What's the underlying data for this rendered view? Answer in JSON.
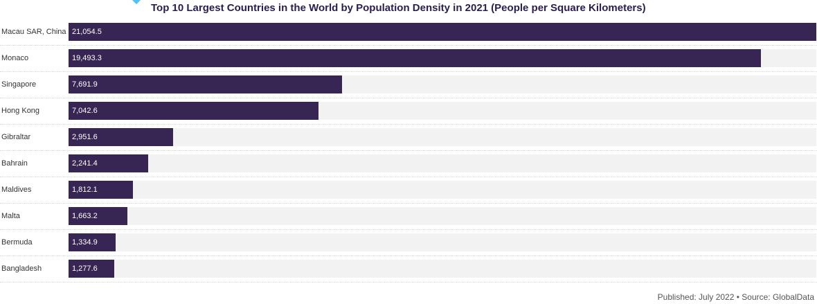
{
  "chart_data": {
    "type": "bar",
    "orientation": "horizontal",
    "title": "Top 10 Largest Countries in the World by Population Density in 2021 (People per Square Kilometers)",
    "categories": [
      "Macau SAR, China",
      "Monaco",
      "Singapore",
      "Hong Kong",
      "Gibraltar",
      "Bahrain",
      "Maldives",
      "Malta",
      "Bermuda",
      "Bangladesh"
    ],
    "values": [
      21054.5,
      19493.3,
      7691.9,
      7042.6,
      2951.6,
      2241.4,
      1812.1,
      1663.2,
      1334.9,
      1277.6
    ],
    "value_labels": [
      "21,054.5",
      "19,493.3",
      "7,691.9",
      "7,042.6",
      "2,951.6",
      "2,241.4",
      "1,812.1",
      "1,663.2",
      "1,334.9",
      "1,277.6"
    ],
    "xlim": [
      0,
      21054.5
    ],
    "grid": false,
    "colors": {
      "bar": "#372554",
      "track": "#f2f2f2",
      "accent": "#4fc3f7"
    }
  },
  "footer": "Published: July 2022 • Source: GlobalData"
}
